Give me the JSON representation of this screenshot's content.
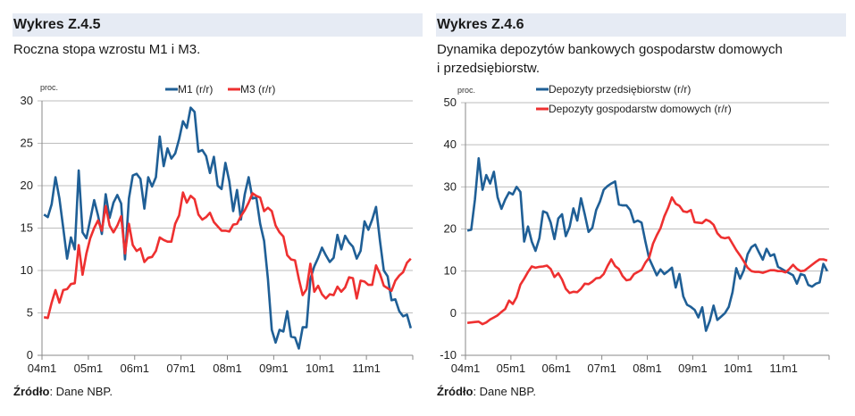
{
  "charts_text": {
    "left": {
      "title": "Wykres Z.4.5",
      "subtitle": "Roczna stopa wzrostu M1 i M3.",
      "source_label": "Źródło",
      "source_text": ": Dane NBP."
    },
    "right": {
      "title": "Wykres Z.4.6",
      "subtitle_line1": "Dynamika depozytów bankowych gospodarstw domowych",
      "subtitle_line2": "i przedsiębiorstw.",
      "source_label": "Źródło",
      "source_text": ": Dane NBP."
    }
  },
  "chart_data": [
    {
      "type": "line",
      "ylabel": "proc.",
      "ylim": [
        0,
        30
      ],
      "yticks": [
        0,
        5,
        10,
        15,
        20,
        25,
        30
      ],
      "xticks": [
        "04m1",
        "05m1",
        "06m1",
        "07m1",
        "08m1",
        "09m1",
        "10m1",
        "11m1"
      ],
      "x_note": "monthly, 2004m1-2011m12",
      "grid": true,
      "legend": "top-center",
      "series": [
        {
          "name": "M1 (r/r)",
          "color": "#1f5f96",
          "values": [
            16.6,
            16.3,
            17.8,
            21,
            18.5,
            15,
            11.4,
            13.9,
            12.5,
            21.8,
            14.5,
            13.8,
            16,
            18.3,
            16.5,
            14.3,
            19,
            16.2,
            18,
            18.9,
            17.9,
            11.3,
            18.5,
            21.2,
            21.4,
            20.8,
            17.3,
            21,
            19.9,
            21,
            25.8,
            22.3,
            24.4,
            23.2,
            23.8,
            25.5,
            27.6,
            26.8,
            29.2,
            28.7,
            24,
            24.2,
            23.5,
            21.5,
            23.4,
            20,
            19.6,
            22.7,
            20.5,
            17,
            19.5,
            16,
            19,
            21,
            18.5,
            18.6,
            15.5,
            13.5,
            9,
            3,
            1.5,
            3,
            2.8,
            5.2,
            2.2,
            2.1,
            0.8,
            3.3,
            3.3,
            9,
            10.5,
            11.5,
            12.7,
            11.8,
            11,
            11.5,
            14.2,
            12.5,
            14.1,
            13.3,
            12.8,
            11.4,
            12.3,
            15.8,
            14.8,
            16,
            17.5,
            13.5,
            10,
            9.3,
            6.5,
            6.6,
            5.2,
            4.6,
            4.8,
            3.2
          ]
        },
        {
          "name": "M3 (r/r)",
          "color": "#ee3030",
          "values": [
            4.5,
            4.4,
            6.2,
            7.7,
            6.2,
            7.7,
            7.8,
            8.4,
            8.5,
            13,
            9.5,
            12,
            13.8,
            15,
            15.9,
            14.7,
            17.6,
            15.3,
            14.5,
            15.3,
            16.4,
            12,
            15.5,
            13,
            12.3,
            12.6,
            11,
            11.5,
            11.6,
            12.3,
            13.9,
            13.6,
            13.4,
            13.4,
            15.5,
            16.5,
            19.2,
            18,
            18.8,
            18.4,
            16.6,
            16,
            16.3,
            16.8,
            15.7,
            15.2,
            14.7,
            14.7,
            14.6,
            15.4,
            15.5,
            16.4,
            17.1,
            18,
            19.1,
            18.8,
            18.6,
            17,
            17.4,
            17,
            15.3,
            14.5,
            14,
            11.8,
            11.3,
            11.2,
            9,
            7.1,
            7.8,
            10.8,
            7.5,
            8.2,
            7.2,
            6.7,
            7.2,
            7.1,
            8.1,
            7.5,
            8,
            9.2,
            9.1,
            6.7,
            8.8,
            8.7,
            8.3,
            8.3,
            10.6,
            9.6,
            8.2,
            7.9,
            7.6,
            8.8,
            9.4,
            9.8,
            10.9,
            11.4
          ]
        }
      ]
    },
    {
      "type": "line",
      "ylabel": "proc.",
      "ylim": [
        -10,
        50
      ],
      "yticks": [
        -10,
        0,
        10,
        20,
        30,
        40,
        50
      ],
      "xticks": [
        "04m1",
        "05m1",
        "06m1",
        "07m1",
        "08m1",
        "09m1",
        "10m1",
        "11m1"
      ],
      "x_note": "monthly, 2004m1-2011m12",
      "grid": true,
      "legend": "top-center",
      "series": [
        {
          "name": "Depozyty przedsiębiorstw (r/r)",
          "color": "#1f5f96",
          "values": [
            19.6,
            19.8,
            27,
            36.8,
            29.3,
            32.8,
            30.8,
            33.6,
            27.5,
            24.8,
            27,
            28.7,
            28.2,
            30,
            28.8,
            17,
            20.6,
            17,
            14.8,
            17.8,
            24.2,
            23.8,
            21.5,
            17.6,
            22.5,
            23.5,
            18.3,
            20.5,
            24.9,
            22,
            27.3,
            23.5,
            19.3,
            20.3,
            24.5,
            26.5,
            29.3,
            30.2,
            30.8,
            31.3,
            25.8,
            25.6,
            25.6,
            24.5,
            21.6,
            22,
            21.5,
            17,
            13,
            11,
            9,
            10.4,
            9.3,
            10,
            10.8,
            6.1,
            9.3,
            4,
            2,
            1.5,
            0.8,
            -1,
            1.4,
            -4.2,
            -1.8,
            1.8,
            -1.6,
            -0.8,
            0,
            1.5,
            5,
            10.7,
            8.2,
            10.2,
            14,
            15.7,
            16.3,
            14.4,
            12.7,
            15.3,
            13.6,
            14,
            11,
            10.5,
            10,
            9.5,
            9,
            7,
            9.3,
            9,
            6.7,
            6.3,
            7,
            7.3,
            11.7,
            10
          ]
        },
        {
          "name": "Depozyty gospodarstw domowych (r/r)",
          "color": "#ee3030",
          "values": [
            -2.3,
            -2.2,
            -2.1,
            -2,
            -2.6,
            -2.2,
            -1.5,
            -1,
            -0.5,
            0.3,
            1,
            3,
            2.2,
            3.8,
            6.8,
            8.2,
            9.8,
            11.1,
            10.8,
            11,
            11.1,
            11.3,
            10.5,
            8.6,
            9.5,
            8,
            5.8,
            4.8,
            5.1,
            5,
            5.8,
            7,
            6.9,
            7.5,
            8.3,
            8.4,
            9.3,
            11.2,
            12.8,
            11.2,
            10.5,
            8.8,
            7.8,
            8,
            9.3,
            9.8,
            10.3,
            12,
            13.2,
            16.5,
            18.5,
            20.2,
            23,
            25,
            27.5,
            26,
            25.5,
            24.2,
            24,
            24.5,
            21.6,
            21.5,
            21.4,
            22.2,
            21.8,
            21,
            19,
            18,
            17.8,
            18,
            16.5,
            15,
            13.7,
            12.3,
            10.8,
            10,
            9.8,
            9.8,
            9.6,
            9.9,
            10.2,
            10.2,
            10,
            10,
            9.7,
            10.5,
            11.5,
            10.5,
            10,
            10.1,
            10.8,
            11.5,
            12.2,
            12.8,
            12.8,
            12.5
          ]
        }
      ]
    }
  ]
}
